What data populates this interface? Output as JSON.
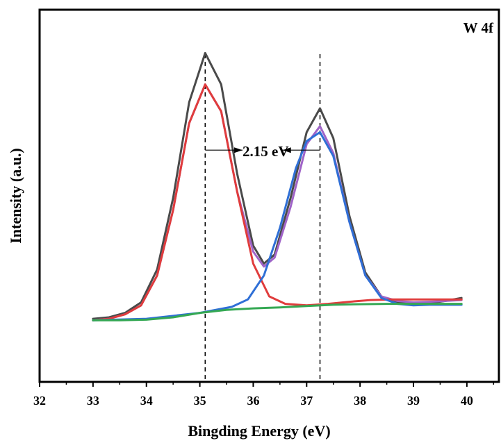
{
  "chart_data": {
    "type": "line",
    "title": "",
    "panel_label": "W 4f",
    "xlabel": "Bingding Energy (eV)",
    "ylabel": "Intensity (a.u.)",
    "xlim": [
      32,
      40.6
    ],
    "ylim": [
      0,
      100
    ],
    "x_ticks": [
      "32",
      "33",
      "34",
      "35",
      "36",
      "37",
      "38",
      "39",
      "40"
    ],
    "y_ticks_shown": false,
    "grid": false,
    "legend": "none",
    "annotations": [
      {
        "text": "2.15 eV",
        "x": 36.25,
        "y": 72
      }
    ],
    "reference_lines": [
      {
        "x": 35.1,
        "style": "dashed"
      },
      {
        "x": 37.25,
        "style": "dashed"
      }
    ],
    "arrows": [
      {
        "from": 35.1,
        "to": 35.8,
        "y": 66
      },
      {
        "from": 37.25,
        "to": 36.55,
        "y": 66
      }
    ],
    "series": [
      {
        "color": "#4a4a4a",
        "x": [
          33.0,
          33.3,
          33.6,
          33.9,
          34.2,
          34.5,
          34.8,
          35.1,
          35.4,
          35.7,
          36.0,
          36.2,
          36.4,
          36.7,
          37.0,
          37.25,
          37.5,
          37.8,
          38.1,
          38.4,
          38.7,
          39.0,
          39.3,
          39.6,
          39.9
        ],
        "values": [
          9.5,
          10.0,
          11.5,
          15.0,
          26.0,
          50.0,
          82.0,
          98.5,
          88.0,
          58.0,
          34.0,
          28.0,
          31.0,
          50.0,
          72.0,
          80.0,
          70.0,
          44.0,
          25.0,
          17.0,
          15.0,
          14.5,
          14.8,
          15.5,
          16.5
        ]
      },
      {
        "color": "#a064c8",
        "x": [
          33.0,
          33.3,
          33.6,
          33.9,
          34.2,
          34.5,
          34.8,
          35.1,
          35.4,
          35.7,
          36.0,
          36.2,
          36.4,
          36.7,
          37.0,
          37.25,
          37.5,
          37.8,
          38.1,
          38.4,
          38.7,
          39.0,
          39.3,
          39.6,
          39.9
        ],
        "values": [
          9.0,
          9.5,
          11.0,
          14.0,
          24.0,
          46.0,
          75.0,
          88.0,
          79.0,
          52.0,
          32.0,
          27.0,
          30.0,
          47.0,
          68.0,
          74.0,
          65.0,
          42.0,
          24.0,
          17.0,
          15.5,
          15.0,
          15.2,
          15.5,
          15.8
        ]
      },
      {
        "color": "#e03c3c",
        "x": [
          33.0,
          33.3,
          33.6,
          33.9,
          34.2,
          34.5,
          34.8,
          35.1,
          35.4,
          35.7,
          36.0,
          36.3,
          36.6,
          37.0,
          37.4,
          37.8,
          38.2,
          38.6,
          39.0,
          39.4,
          39.9
        ],
        "values": [
          9.0,
          9.5,
          11.0,
          14.0,
          24.0,
          46.0,
          75.0,
          88.0,
          79.0,
          52.0,
          28.0,
          17.0,
          14.5,
          14.0,
          14.5,
          15.2,
          15.8,
          16.0,
          16.0,
          16.0,
          16.0
        ]
      },
      {
        "color": "#2f6fd6",
        "x": [
          33.0,
          34.0,
          35.0,
          35.6,
          35.9,
          36.2,
          36.5,
          36.8,
          37.0,
          37.25,
          37.5,
          37.8,
          38.1,
          38.4,
          38.7,
          39.0,
          39.3,
          39.6,
          39.9
        ],
        "values": [
          9.0,
          9.5,
          11.5,
          13.5,
          16.0,
          24.0,
          40.0,
          60.0,
          69.0,
          72.0,
          64.0,
          42.0,
          24.0,
          16.5,
          14.5,
          14.0,
          14.2,
          14.2,
          14.2
        ]
      },
      {
        "color": "#34a853",
        "x": [
          33.0,
          33.5,
          34.0,
          34.5,
          35.0,
          35.5,
          36.0,
          36.5,
          37.0,
          37.5,
          38.0,
          38.5,
          39.0,
          39.5,
          39.9
        ],
        "values": [
          9.0,
          9.0,
          9.2,
          10.0,
          11.5,
          12.5,
          13.0,
          13.3,
          13.8,
          14.2,
          14.4,
          14.5,
          14.5,
          14.5,
          14.5
        ]
      }
    ]
  }
}
